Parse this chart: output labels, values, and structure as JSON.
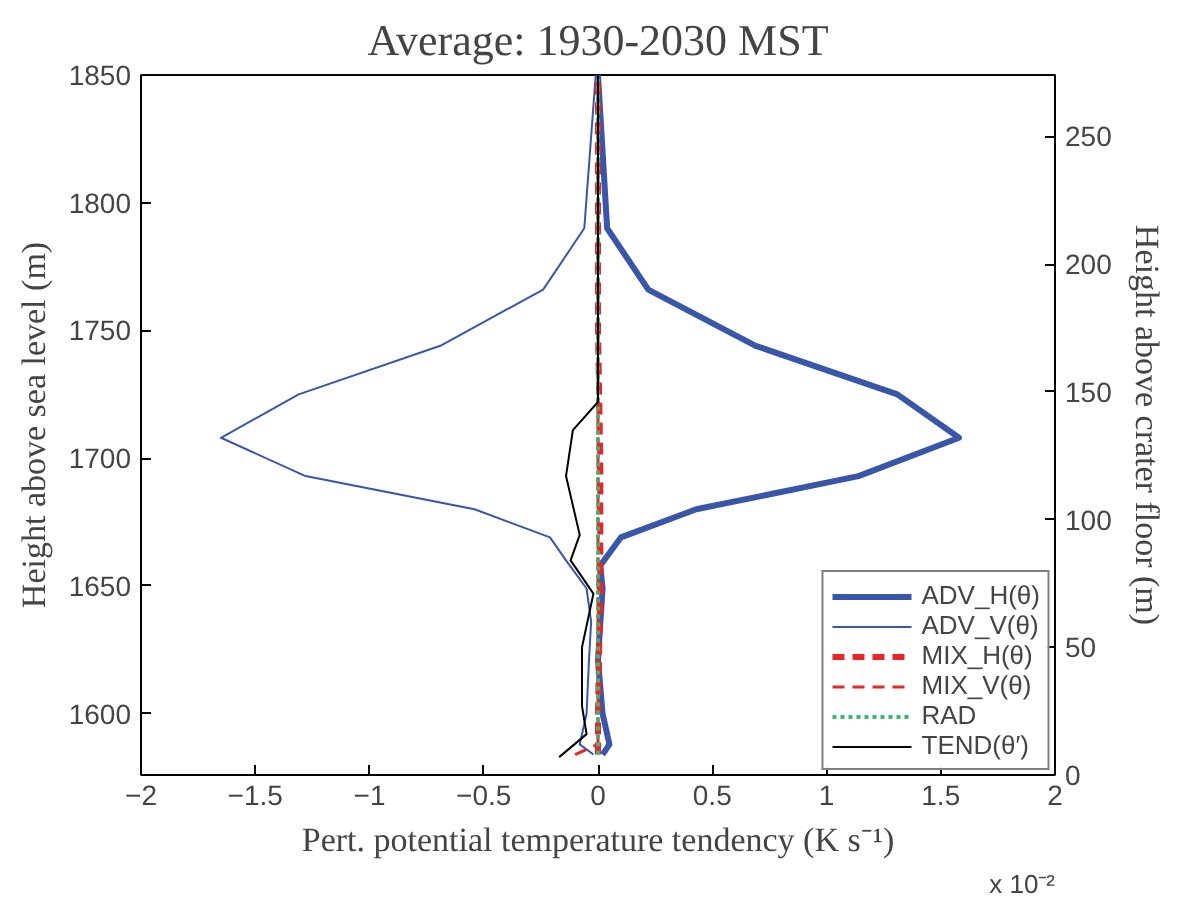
{
  "chart_data": {
    "type": "line",
    "title": "Average: 1930-2030 MST",
    "xlabel": "Pert. potential temperature tendency (K s⁻¹)",
    "ylabel": "Height above sea level (m)",
    "y2label": "Height above crater floor (m)",
    "xlim": [
      -2,
      2
    ],
    "xticks": [
      -2,
      -1.5,
      -1,
      -0.5,
      0,
      0.5,
      1,
      1.5,
      2
    ],
    "ylim": [
      1576,
      1850
    ],
    "yticks": [
      1600,
      1650,
      1700,
      1750,
      1800,
      1850
    ],
    "y2lim": [
      0,
      274
    ],
    "y2ticks": [
      0,
      50,
      100,
      150,
      200,
      250
    ],
    "grid": false,
    "legend": "bottom right",
    "annotations": [
      "x 10⁻²"
    ],
    "series": [
      {
        "name": "ADV_H(θ)",
        "color": "#3a56a8",
        "line_style": "solid",
        "x": [
          0.02,
          0.05,
          0.02,
          0.0,
          0.02,
          0.01,
          0.1,
          0.43,
          1.14,
          1.58,
          1.31,
          0.69,
          0.22,
          0.04,
          0.0
        ],
        "values": [
          1584,
          1588,
          1600,
          1621,
          1649,
          1658,
          1669,
          1680,
          1693,
          1708,
          1725,
          1744,
          1766,
          1790,
          1850
        ]
      },
      {
        "name": "ADV_V(θ)",
        "color": "#3a56a8",
        "line_style": "solid",
        "x": [
          -0.02,
          -0.08,
          -0.05,
          -0.04,
          -0.03,
          -0.05,
          -0.14,
          -0.21,
          -0.54,
          -1.28,
          -1.65,
          -1.31,
          -0.69,
          -0.24,
          -0.06,
          -0.01
        ],
        "values": [
          1584,
          1588,
          1600,
          1620,
          1636,
          1649,
          1660,
          1669,
          1680,
          1693,
          1708,
          1725,
          1744,
          1766,
          1790,
          1850
        ]
      },
      {
        "name": "MIX_H(θ)",
        "color": "#e8262a",
        "line_style": "dashed",
        "x": [
          0.0,
          0.0,
          0.01,
          0.01,
          0.0,
          0.0
        ],
        "values": [
          1584,
          1600,
          1650,
          1700,
          1750,
          1850
        ]
      },
      {
        "name": "MIX_V(θ)",
        "color": "#e8262a",
        "line_style": "dashed",
        "x": [
          -0.1,
          0.0,
          0.0,
          0.0,
          0.0
        ],
        "values": [
          1584,
          1588,
          1650,
          1750,
          1850
        ]
      },
      {
        "name": "RAD",
        "color": "#3cb371",
        "line_style": "dotted",
        "x": [
          0.0,
          0.0,
          0.0
        ],
        "values": [
          1584,
          1700,
          1850
        ]
      },
      {
        "name": "TEND(θ′)",
        "color": "#000000",
        "line_style": "solid",
        "x": [
          -0.17,
          -0.05,
          -0.07,
          -0.07,
          -0.02,
          -0.12,
          -0.08,
          -0.14,
          -0.11,
          0.0,
          0.0,
          0.0
        ],
        "values": [
          1583,
          1592,
          1603,
          1626,
          1647,
          1660,
          1670,
          1693,
          1711,
          1722,
          1780,
          1850
        ]
      }
    ]
  }
}
